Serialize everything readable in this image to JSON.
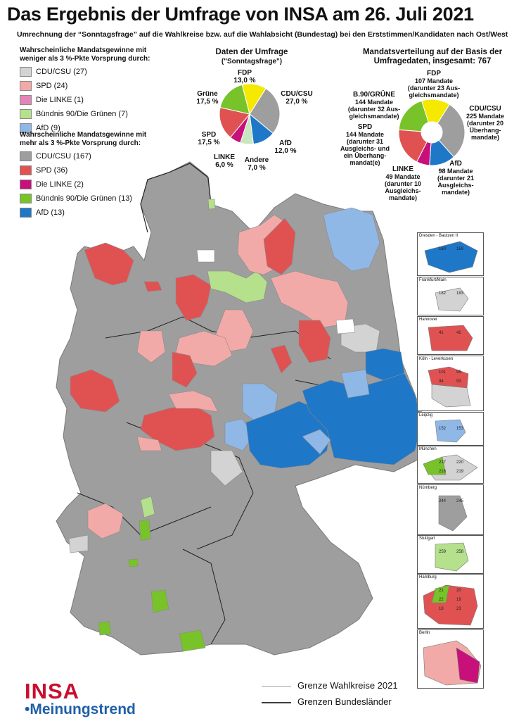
{
  "title": "Das Ergebnis der Umfrage von INSA am 26. Juli 2021",
  "subtitle": "Umrechnung der “Sonntagsfrage” auf die Wahlkreise bzw. auf die Wahlabsicht (Bundestag) bei den Erststimmen/Kandidaten nach Ost/West",
  "colors": {
    "cdu": "#9e9e9e",
    "cdu_light": "#d3d3d3",
    "spd": "#e05252",
    "spd_light": "#f2aaa8",
    "linke": "#c8107a",
    "linke_light": "#e584b8",
    "gruene": "#78c22a",
    "gruene_light": "#b5e08c",
    "afd": "#1f77c8",
    "afd_light": "#8fb8e6",
    "fdp": "#f5e900",
    "andere": "#c8e6c0"
  },
  "legend": {
    "weak_heading": "Wahrscheinliche Mandatsgewinne mit weniger als 3 %-Pkte Vorsprung durch:",
    "weak": [
      {
        "label": "CDU/CSU (27)",
        "color": "#d3d3d3"
      },
      {
        "label": "SPD (24)",
        "color": "#f2aaa8"
      },
      {
        "label": "Die LINKE (1)",
        "color": "#e584b8"
      },
      {
        "label": "Bündnis 90/Die Grünen (7)",
        "color": "#b5e08c"
      },
      {
        "label": "AfD (9)",
        "color": "#8fb8e6"
      }
    ],
    "strong_heading": "Wahrscheinliche Mandatsgewinne mit mehr als 3 %-Pkte Vorsprung durch:",
    "strong": [
      {
        "label": "CDU/CSU (167)",
        "color": "#9e9e9e"
      },
      {
        "label": "SPD (36)",
        "color": "#e05252"
      },
      {
        "label": "Die LINKE (2)",
        "color": "#c8107a"
      },
      {
        "label": "Bündnis 90/Die Grünen (13)",
        "color": "#78c22a"
      },
      {
        "label": "AfD (13)",
        "color": "#1f77c8"
      }
    ]
  },
  "chart_data": [
    {
      "type": "pie",
      "title": "Daten der Umfrage",
      "subtitle": "(\"Sonntagsfrage\")",
      "slices": [
        {
          "party": "CDU/CSU",
          "value": 27.0,
          "label": "CDU/CSU",
          "value_label": "27,0 %",
          "color": "#9e9e9e"
        },
        {
          "party": "AfD",
          "value": 12.0,
          "label": "AfD",
          "value_label": "12,0 %",
          "color": "#1f77c8"
        },
        {
          "party": "Andere",
          "value": 7.0,
          "label": "Andere",
          "value_label": "7,0 %",
          "color": "#c8e6c0"
        },
        {
          "party": "LINKE",
          "value": 6.0,
          "label": "LINKE",
          "value_label": "6,0 %",
          "color": "#c8107a"
        },
        {
          "party": "SPD",
          "value": 17.5,
          "label": "SPD",
          "value_label": "17,5 %",
          "color": "#e05252"
        },
        {
          "party": "Grüne",
          "value": 17.5,
          "label": "Grüne",
          "value_label": "17,5 %",
          "color": "#78c22a"
        },
        {
          "party": "FDP",
          "value": 13.0,
          "label": "FDP",
          "value_label": "13,0 %",
          "color": "#f5e900"
        }
      ]
    },
    {
      "type": "pie",
      "title": "Mandatsverteilung auf der Basis der Umfragedaten, insgesamt: 767",
      "slices": [
        {
          "party": "CDU/CSU",
          "value": 225,
          "label": "CDU/CSU",
          "detail": "225 Mandate (darunter 20 Überhang-mandate)",
          "color": "#9e9e9e"
        },
        {
          "party": "AfD",
          "value": 98,
          "label": "AfD",
          "detail": "98 Mandate (darunter 21 Ausgleichs-mandate)",
          "color": "#1f77c8"
        },
        {
          "party": "LINKE",
          "value": 49,
          "label": "LINKE",
          "detail": "49 Mandate (darunter 10 Ausgleichs-mandate)",
          "color": "#c8107a"
        },
        {
          "party": "SPD",
          "value": 144,
          "label": "SPD",
          "detail": "144 Mandate (darunter 31 Ausgleichs- und ein Überhang-mandat(e)",
          "color": "#e05252"
        },
        {
          "party": "B.90/GRÜNE",
          "value": 144,
          "label": "B.90/GRÜNE",
          "detail": "144 Mandate (darunter 32 Aus-gleichsmandate)",
          "color": "#78c22a"
        },
        {
          "party": "FDP",
          "value": 107,
          "label": "FDP",
          "detail": "107 Mandate (darunter 23 Aus-gleichsmandate)",
          "color": "#f5e900"
        }
      ]
    }
  ],
  "insets": [
    {
      "name": "Dresden - Bautzen II",
      "numbers": [
        "160",
        "159"
      ]
    },
    {
      "name": "Frankfurt/Main",
      "numbers": [
        "182",
        "183"
      ]
    },
    {
      "name": "Hannover",
      "numbers": [
        "41",
        "42"
      ]
    },
    {
      "name": "Köln - Leverkusen",
      "numbers": [
        "101",
        "95",
        "94",
        "93"
      ]
    },
    {
      "name": "Leipzig",
      "numbers": [
        "152",
        "153"
      ]
    },
    {
      "name": "München",
      "numbers": [
        "217",
        "220",
        "218",
        "219"
      ]
    },
    {
      "name": "Nürnberg",
      "numbers": [
        "244",
        "245"
      ]
    },
    {
      "name": "Stuttgart",
      "numbers": [
        "259",
        "258"
      ]
    },
    {
      "name": "Hamburg",
      "numbers": [
        "21",
        "20",
        "22",
        "19",
        "18",
        "23"
      ]
    },
    {
      "name": "Berlin",
      "numbers": []
    }
  ],
  "map_legend": {
    "wahlkreise": "Grenze Wahlkreise 2021",
    "bundeslaender": "Grenzen Bundesländer"
  },
  "logo": {
    "top": "INSA",
    "bottom": "•Meinungstrend"
  }
}
